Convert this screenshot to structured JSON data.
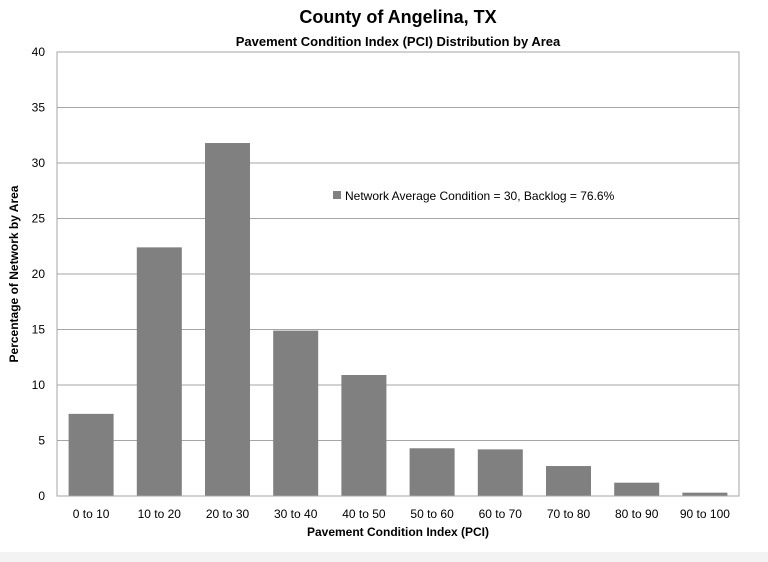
{
  "chart_data": {
    "type": "bar",
    "title": "County of Angelina, TX",
    "subtitle": "Pavement Condition Index (PCI) Distribution by Area",
    "xlabel": "Pavement Condition Index (PCI)",
    "ylabel": "Percentage of Network by Area",
    "categories": [
      "0 to 10",
      "10 to 20",
      "20 to 30",
      "30 to 40",
      "40 to 50",
      "50 to 60",
      "60 to 70",
      "70 to 80",
      "80 to 90",
      "90 to 100"
    ],
    "series": [
      {
        "name": "Network Average Condition = 30, Backlog = 76.6%",
        "values": [
          7.4,
          22.4,
          31.8,
          14.9,
          10.9,
          4.3,
          4.2,
          2.7,
          1.2,
          0.3
        ],
        "color": "#808080"
      }
    ],
    "ylim": [
      0,
      40
    ],
    "yticks": [
      0,
      5,
      10,
      15,
      20,
      25,
      30,
      35,
      40
    ],
    "grid": true,
    "legend_position": "inside-upper-middle",
    "gridline_color": "#a6a6a6",
    "bar_color": "#808080"
  }
}
